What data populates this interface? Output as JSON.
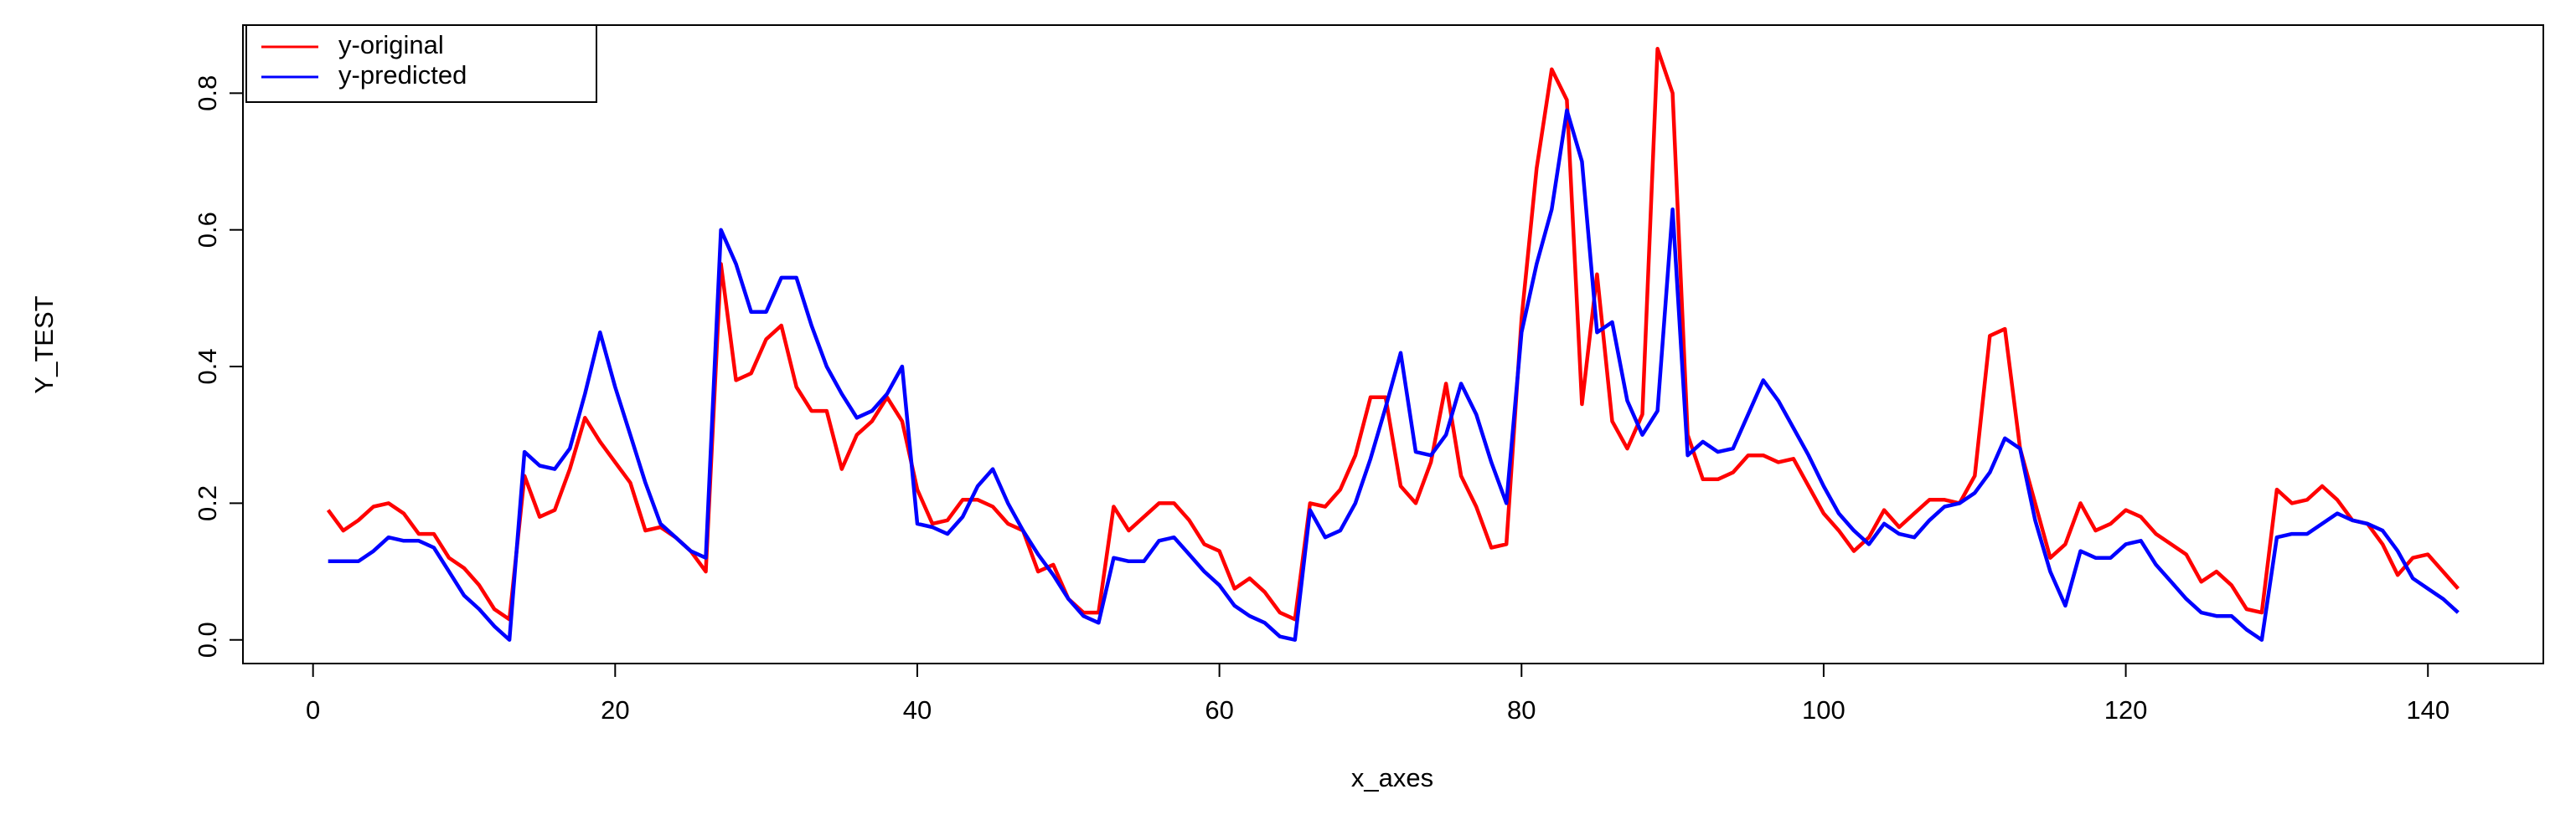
{
  "chart_data": {
    "type": "line",
    "x_label": "x_axes",
    "y_label": "Y_TEST",
    "x": [
      1,
      2,
      3,
      4,
      5,
      6,
      7,
      8,
      9,
      10,
      11,
      12,
      13,
      14,
      15,
      16,
      17,
      18,
      19,
      20,
      21,
      22,
      23,
      24,
      25,
      26,
      27,
      28,
      29,
      30,
      31,
      32,
      33,
      34,
      35,
      36,
      37,
      38,
      39,
      40,
      41,
      42,
      43,
      44,
      45,
      46,
      47,
      48,
      49,
      50,
      51,
      52,
      53,
      54,
      55,
      56,
      57,
      58,
      59,
      60,
      61,
      62,
      63,
      64,
      65,
      66,
      67,
      68,
      69,
      70,
      71,
      72,
      73,
      74,
      75,
      76,
      77,
      78,
      79,
      80,
      81,
      82,
      83,
      84,
      85,
      86,
      87,
      88,
      89,
      90,
      91,
      92,
      93,
      94,
      95,
      96,
      97,
      98,
      99,
      100,
      101,
      102,
      103,
      104,
      105,
      106,
      107,
      108,
      109,
      110,
      111,
      112,
      113,
      114,
      115,
      116,
      117,
      118,
      119,
      120,
      121,
      122,
      123,
      124,
      125,
      126,
      127,
      128,
      129,
      130,
      131,
      132,
      133,
      134,
      135,
      136,
      137,
      138,
      139,
      140,
      141,
      142
    ],
    "series": [
      {
        "name": "y-original",
        "color": "#ff0000",
        "values": [
          0.19,
          0.16,
          0.175,
          0.195,
          0.2,
          0.185,
          0.155,
          0.155,
          0.12,
          0.105,
          0.08,
          0.045,
          0.03,
          0.24,
          0.18,
          0.19,
          0.25,
          0.325,
          0.29,
          0.26,
          0.23,
          0.16,
          0.165,
          0.15,
          0.13,
          0.1,
          0.55,
          0.38,
          0.39,
          0.44,
          0.46,
          0.37,
          0.335,
          0.335,
          0.25,
          0.3,
          0.32,
          0.355,
          0.32,
          0.22,
          0.17,
          0.175,
          0.205,
          0.205,
          0.195,
          0.17,
          0.16,
          0.1,
          0.11,
          0.06,
          0.04,
          0.04,
          0.195,
          0.16,
          0.18,
          0.2,
          0.2,
          0.175,
          0.14,
          0.13,
          0.075,
          0.09,
          0.07,
          0.04,
          0.03,
          0.2,
          0.195,
          0.22,
          0.27,
          0.355,
          0.355,
          0.225,
          0.2,
          0.26,
          0.375,
          0.24,
          0.195,
          0.135,
          0.14,
          0.47,
          0.69,
          0.835,
          0.79,
          0.345,
          0.535,
          0.32,
          0.28,
          0.33,
          0.865,
          0.8,
          0.3,
          0.235,
          0.235,
          0.245,
          0.27,
          0.27,
          0.26,
          0.265,
          0.225,
          0.185,
          0.16,
          0.13,
          0.15,
          0.19,
          0.165,
          0.185,
          0.205,
          0.205,
          0.2,
          0.24,
          0.445,
          0.455,
          0.28,
          0.2,
          0.12,
          0.14,
          0.2,
          0.16,
          0.17,
          0.19,
          0.18,
          0.155,
          0.14,
          0.125,
          0.085,
          0.1,
          0.08,
          0.045,
          0.04,
          0.22,
          0.2,
          0.205,
          0.225,
          0.205,
          0.175,
          0.17,
          0.14,
          0.095,
          0.12,
          0.125,
          0.1,
          0.075
        ]
      },
      {
        "name": "y-predicted",
        "color": "#0000ff",
        "values": [
          0.115,
          0.115,
          0.115,
          0.13,
          0.15,
          0.145,
          0.145,
          0.135,
          0.1,
          0.065,
          0.045,
          0.02,
          0.0,
          0.275,
          0.255,
          0.25,
          0.28,
          0.36,
          0.45,
          0.37,
          0.3,
          0.23,
          0.17,
          0.15,
          0.13,
          0.12,
          0.6,
          0.55,
          0.48,
          0.48,
          0.53,
          0.53,
          0.46,
          0.4,
          0.36,
          0.325,
          0.335,
          0.36,
          0.4,
          0.17,
          0.165,
          0.155,
          0.18,
          0.225,
          0.25,
          0.2,
          0.16,
          0.125,
          0.095,
          0.06,
          0.035,
          0.025,
          0.12,
          0.115,
          0.115,
          0.145,
          0.15,
          0.125,
          0.1,
          0.08,
          0.05,
          0.035,
          0.025,
          0.005,
          0.0,
          0.19,
          0.15,
          0.16,
          0.2,
          0.265,
          0.34,
          0.42,
          0.275,
          0.27,
          0.3,
          0.375,
          0.33,
          0.26,
          0.2,
          0.45,
          0.55,
          0.63,
          0.775,
          0.7,
          0.45,
          0.465,
          0.35,
          0.3,
          0.335,
          0.63,
          0.27,
          0.29,
          0.275,
          0.28,
          0.33,
          0.38,
          0.35,
          0.31,
          0.27,
          0.225,
          0.185,
          0.16,
          0.14,
          0.17,
          0.155,
          0.15,
          0.175,
          0.195,
          0.2,
          0.215,
          0.245,
          0.295,
          0.28,
          0.175,
          0.1,
          0.05,
          0.13,
          0.12,
          0.12,
          0.14,
          0.145,
          0.11,
          0.085,
          0.06,
          0.04,
          0.035,
          0.035,
          0.015,
          0.0,
          0.15,
          0.155,
          0.155,
          0.17,
          0.185,
          0.175,
          0.17,
          0.16,
          0.13,
          0.09,
          0.075,
          0.06,
          0.04
        ]
      }
    ],
    "xlim": [
      -4.64,
      147.64
    ],
    "xticks": [
      0,
      20,
      40,
      60,
      80,
      100,
      120,
      140
    ],
    "ylim": [
      -0.0346,
      0.8996
    ],
    "yticks": [
      {
        "value": 0,
        "label": "0.0"
      },
      0.2,
      0.4,
      0.6,
      0.8
    ],
    "legend": "top-left"
  }
}
